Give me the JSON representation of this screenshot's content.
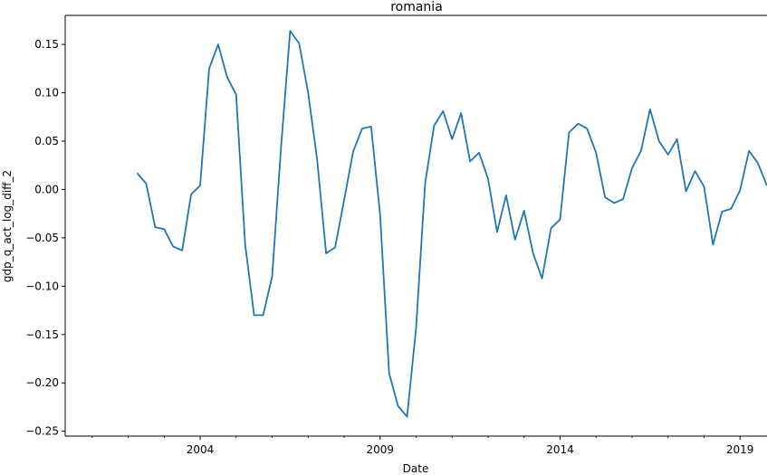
{
  "chart_data": {
    "type": "line",
    "title": "romania",
    "xlabel": "Date",
    "ylabel": "gdp_q_act_log_diff_2",
    "xlim": [
      2000.25,
      2019.75
    ],
    "ylim": [
      -0.255,
      0.18
    ],
    "y_ticks": [
      -0.25,
      -0.2,
      -0.15,
      -0.1,
      -0.05,
      0.0,
      0.05,
      0.1,
      0.15
    ],
    "y_tick_labels": [
      "−0.25",
      "−0.20",
      "−0.15",
      "−0.10",
      "−0.05",
      "0.00",
      "0.05",
      "0.10",
      "0.15"
    ],
    "x_major_ticks": [
      2004,
      2009,
      2014,
      2019
    ],
    "x_major_tick_labels": [
      "2004",
      "2009",
      "2014",
      "2019"
    ],
    "x_minor_ticks": [
      2001,
      2002,
      2003,
      2005,
      2006,
      2007,
      2008,
      2010,
      2011,
      2012,
      2013,
      2015,
      2016,
      2017,
      2018
    ],
    "grid": false,
    "series": [
      {
        "color": "#1f77b4",
        "points": [
          [
            2002.25,
            0.017
          ],
          [
            2002.5,
            0.006
          ],
          [
            2002.75,
            -0.039
          ],
          [
            2003.0,
            -0.041
          ],
          [
            2003.25,
            -0.059
          ],
          [
            2003.5,
            -0.063
          ],
          [
            2003.75,
            -0.005
          ],
          [
            2004.0,
            0.004
          ],
          [
            2004.25,
            0.125
          ],
          [
            2004.5,
            0.15
          ],
          [
            2004.75,
            0.116
          ],
          [
            2005.0,
            0.098
          ],
          [
            2005.25,
            -0.057
          ],
          [
            2005.5,
            -0.13
          ],
          [
            2005.75,
            -0.13
          ],
          [
            2006.0,
            -0.09
          ],
          [
            2006.25,
            0.045
          ],
          [
            2006.5,
            0.164
          ],
          [
            2006.75,
            0.151
          ],
          [
            2007.0,
            0.1
          ],
          [
            2007.25,
            0.031
          ],
          [
            2007.5,
            -0.066
          ],
          [
            2007.75,
            -0.06
          ],
          [
            2008.0,
            -0.011
          ],
          [
            2008.25,
            0.039
          ],
          [
            2008.5,
            0.063
          ],
          [
            2008.75,
            0.065
          ],
          [
            2009.0,
            -0.026
          ],
          [
            2009.25,
            -0.19
          ],
          [
            2009.5,
            -0.224
          ],
          [
            2009.75,
            -0.235
          ],
          [
            2010.0,
            -0.143
          ],
          [
            2010.25,
            0.006
          ],
          [
            2010.5,
            0.066
          ],
          [
            2010.75,
            0.081
          ],
          [
            2011.0,
            0.052
          ],
          [
            2011.25,
            0.079
          ],
          [
            2011.5,
            0.029
          ],
          [
            2011.75,
            0.038
          ],
          [
            2012.0,
            0.011
          ],
          [
            2012.25,
            -0.044
          ],
          [
            2012.5,
            -0.006
          ],
          [
            2012.75,
            -0.052
          ],
          [
            2013.0,
            -0.022
          ],
          [
            2013.25,
            -0.066
          ],
          [
            2013.5,
            -0.092
          ],
          [
            2013.75,
            -0.04
          ],
          [
            2014.0,
            -0.031
          ],
          [
            2014.25,
            0.059
          ],
          [
            2014.5,
            0.068
          ],
          [
            2014.75,
            0.063
          ],
          [
            2015.0,
            0.038
          ],
          [
            2015.25,
            -0.008
          ],
          [
            2015.5,
            -0.014
          ],
          [
            2015.75,
            -0.01
          ],
          [
            2016.0,
            0.022
          ],
          [
            2016.25,
            0.04
          ],
          [
            2016.5,
            0.083
          ],
          [
            2016.75,
            0.05
          ],
          [
            2017.0,
            0.036
          ],
          [
            2017.25,
            0.052
          ],
          [
            2017.5,
            -0.002
          ],
          [
            2017.75,
            0.019
          ],
          [
            2018.0,
            0.003
          ],
          [
            2018.25,
            -0.057
          ],
          [
            2018.5,
            -0.023
          ],
          [
            2018.75,
            -0.02
          ],
          [
            2019.0,
            -0.001
          ],
          [
            2019.25,
            0.04
          ],
          [
            2019.5,
            0.027
          ],
          [
            2019.75,
            0.004
          ]
        ]
      }
    ]
  }
}
